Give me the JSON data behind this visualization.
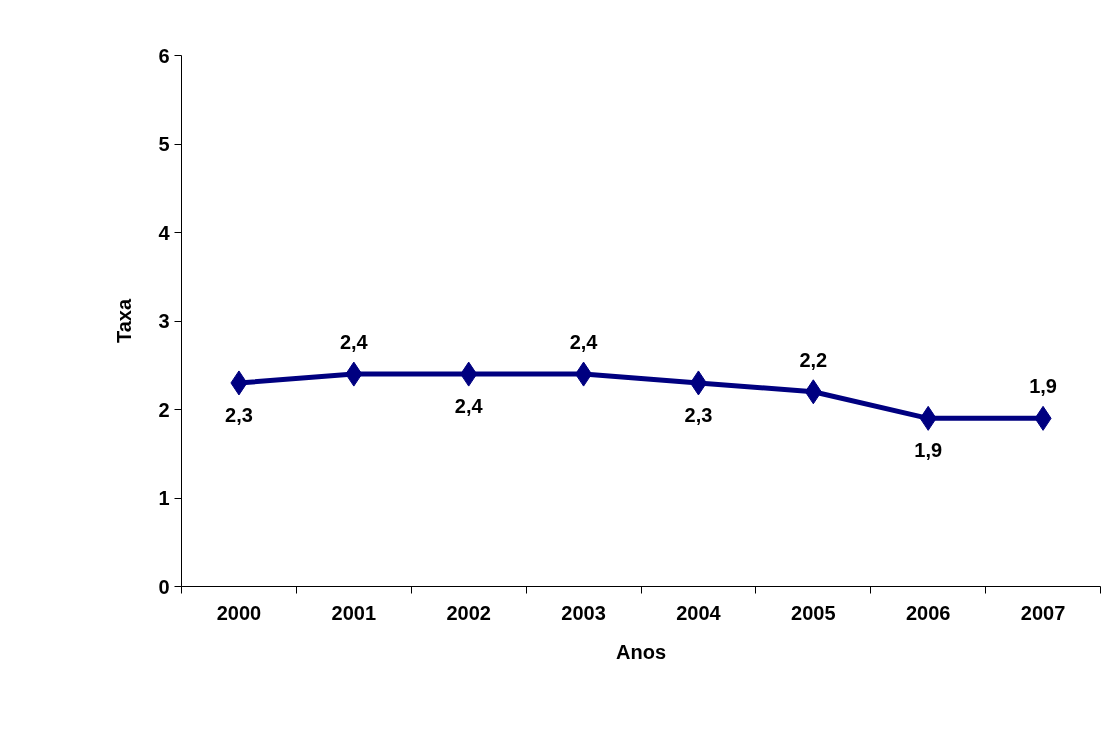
{
  "chart_data": {
    "type": "line",
    "xlabel": "Anos",
    "ylabel": "Taxa",
    "categories": [
      "2000",
      "2001",
      "2002",
      "2003",
      "2004",
      "2005",
      "2006",
      "2007"
    ],
    "series": [
      {
        "color": "#000080",
        "values": [
          2.3,
          2.4,
          2.4,
          2.4,
          2.3,
          2.2,
          1.9,
          1.9
        ],
        "value_labels": [
          "2,3",
          "2,4",
          "2,4",
          "2,4",
          "2,3",
          "2,2",
          "1,9",
          "1,9"
        ]
      }
    ],
    "ylim": [
      0,
      6
    ],
    "yticks": [
      0,
      1,
      2,
      3,
      4,
      5,
      6
    ],
    "grid": false,
    "marker": "diamond",
    "line_style": "solid"
  }
}
